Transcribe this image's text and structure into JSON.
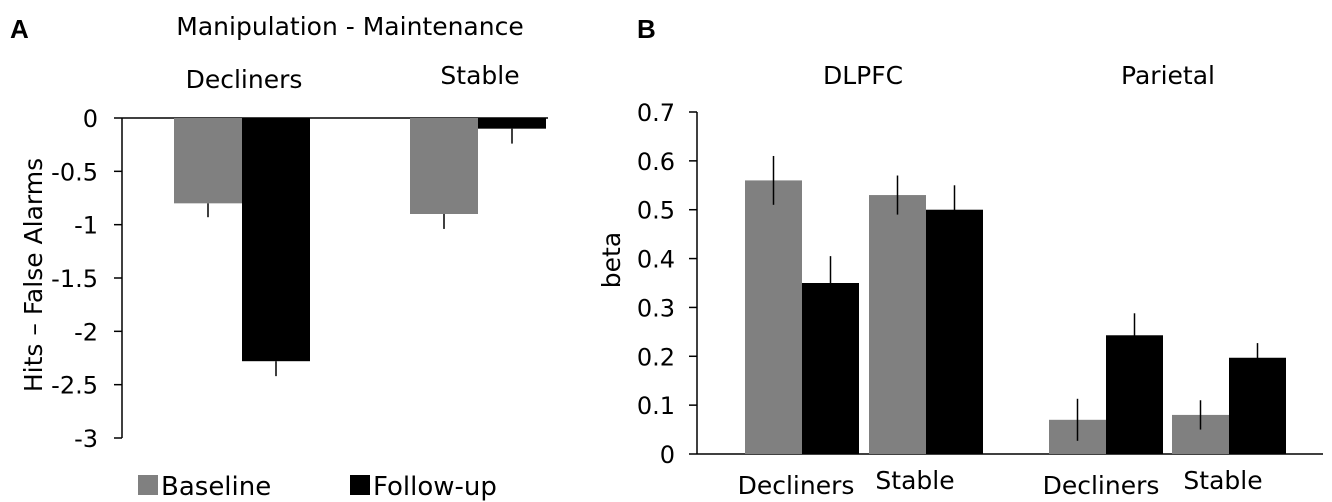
{
  "figure": {
    "panel_a_letter": "A",
    "panel_b_letter": "B"
  },
  "colors": {
    "baseline": "#808080",
    "followup": "#000000",
    "axis": "#000000"
  },
  "chart_data": [
    {
      "type": "bar",
      "title": "Manipulation - Maintenance",
      "ylabel": "Hits – False Alarms",
      "xlabel": "",
      "ylim": [
        -3,
        0
      ],
      "yticks": [
        "0",
        "-0.5",
        "-1",
        "-1.5",
        "-2",
        "-2.5",
        "-3"
      ],
      "yticks_values": [
        0,
        -0.5,
        -1,
        -1.5,
        -2,
        -2.5,
        -3
      ],
      "categories": [
        "Decliners",
        "Stable"
      ],
      "series": [
        {
          "name": "Baseline",
          "values": [
            -0.8,
            -0.9
          ],
          "errors": [
            0.13,
            0.14
          ]
        },
        {
          "name": "Follow-up",
          "values": [
            -2.28,
            -0.1
          ],
          "errors": [
            0.14,
            0.14
          ]
        }
      ],
      "legend": {
        "position": "bottom-left",
        "entries": [
          "Baseline",
          "Follow-up"
        ]
      }
    },
    {
      "type": "bar",
      "title": "",
      "ylabel": "beta",
      "xlabel": "",
      "ylim": [
        0,
        0.7
      ],
      "yticks": [
        "0",
        "0.1",
        "0.2",
        "0.3",
        "0.4",
        "0.5",
        "0.6",
        "0.7"
      ],
      "yticks_values": [
        0,
        0.1,
        0.2,
        0.3,
        0.4,
        0.5,
        0.6,
        0.7
      ],
      "groups": [
        "DLPFC",
        "Parietal"
      ],
      "categories": [
        "Decliners",
        "Stable",
        "Decliners",
        "Stable"
      ],
      "series": [
        {
          "name": "Baseline",
          "values": [
            0.56,
            0.53,
            0.07,
            0.08
          ],
          "errors": [
            0.05,
            0.04,
            0.043,
            0.03
          ]
        },
        {
          "name": "Follow-up",
          "values": [
            0.35,
            0.5,
            0.243,
            0.197
          ],
          "errors": [
            0.055,
            0.05,
            0.045,
            0.03
          ]
        }
      ]
    }
  ]
}
